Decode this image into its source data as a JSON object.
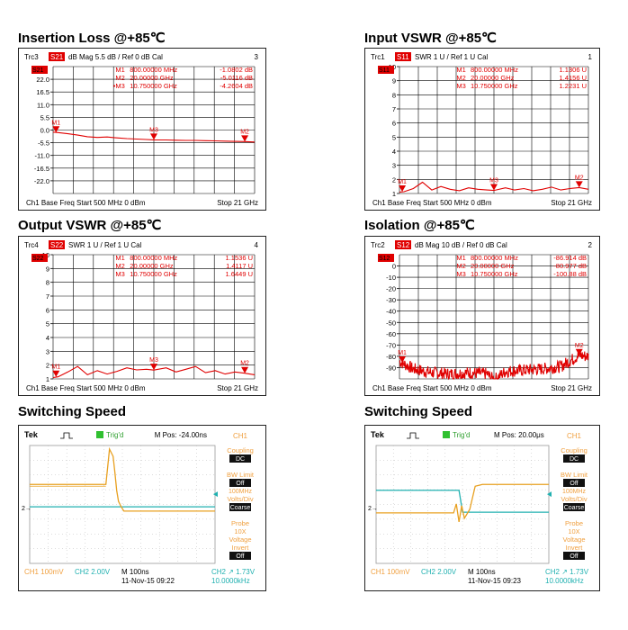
{
  "colors": {
    "trace": "#e00000",
    "grid": "#000000",
    "ch1": "#e8a020",
    "ch2": "#20b0b0",
    "scope_bg": "#ffffff",
    "orange_text": "#f0a040"
  },
  "chart_data": [
    {
      "id": "insertion",
      "type": "line",
      "title": "Insertion Loss @+85℃",
      "header": {
        "trc": "Trc3",
        "param": "S21",
        "rest": "dB Mag   5.5 dB /  Ref 0 dB     Cal",
        "num": "3"
      },
      "param_badge": "S21",
      "yticks": [
        "22.0",
        "16.5",
        "11.0",
        "5.5",
        "0.0",
        "-5.5",
        "-11.0",
        "-16.5",
        "-22.0"
      ],
      "top_label": "22.0",
      "ylim": [
        -27.5,
        27.5
      ],
      "markers_text": [
        {
          "name": "M1",
          "freq": "800.00000  MHz",
          "val": "-1.0802  dB"
        },
        {
          "name": "M2",
          "freq": "20.00000  GHz",
          "val": "-5.0116  dB"
        },
        {
          "name": "•M3",
          "freq": "10.750000  GHz",
          "val": "-4.2604  dB"
        }
      ],
      "x_ghz": [
        0.5,
        1,
        2,
        3,
        4,
        5,
        6,
        7,
        8,
        9,
        10,
        10.75,
        12,
        13,
        14,
        15,
        16,
        17,
        18,
        19,
        20,
        21
      ],
      "y": [
        -0.9,
        -1.1,
        -1.6,
        -2.2,
        -2.9,
        -3.2,
        -3.0,
        -3.4,
        -3.7,
        -3.9,
        -4.1,
        -4.26,
        -4.3,
        -4.4,
        -4.5,
        -4.5,
        -4.6,
        -4.7,
        -4.8,
        -4.9,
        -5.01,
        -5.2
      ],
      "marker_pts": [
        {
          "label": "M1",
          "x": 0.8,
          "y": -1.08
        },
        {
          "label": "M3",
          "x": 10.75,
          "y": -4.26
        },
        {
          "label": "M2",
          "x": 20,
          "y": -5.01
        }
      ],
      "footer": {
        "ch": "Ch1  Base Freq  Start  500 MHz  0 dBm",
        "stop": "Stop  21 GHz"
      }
    },
    {
      "id": "input_vswr",
      "type": "line",
      "title": "Input VSWR @+85℃",
      "header": {
        "trc": "Trc1",
        "param": "S11",
        "rest": "SWR   1 U /  Ref 1 U     Cal",
        "num": "1"
      },
      "param_badge": "S11",
      "yticks": [
        "10",
        "9",
        "8",
        "7",
        "6",
        "5",
        "4",
        "3",
        "2",
        "1"
      ],
      "top_label": "10",
      "ylim": [
        1,
        10
      ],
      "markers_text": [
        {
          "name": "M1",
          "freq": "800.00000  MHz",
          "val": "1.1306  U"
        },
        {
          "name": "M2",
          "freq": "20.00000  GHz",
          "val": "1.4156  U"
        },
        {
          "name": "M3",
          "freq": "10.750000  GHz",
          "val": "1.2231  U"
        }
      ],
      "x_ghz": [
        0.5,
        1,
        2,
        3,
        4,
        5,
        6,
        7,
        8,
        9,
        10,
        10.75,
        12,
        13,
        14,
        15,
        16,
        17,
        18,
        19,
        20,
        21
      ],
      "y": [
        1.1,
        1.13,
        1.35,
        1.8,
        1.25,
        1.5,
        1.3,
        1.2,
        1.4,
        1.3,
        1.25,
        1.22,
        1.4,
        1.25,
        1.35,
        1.2,
        1.3,
        1.45,
        1.25,
        1.35,
        1.42,
        1.3
      ],
      "marker_pts": [
        {
          "label": "M1",
          "x": 0.8,
          "y": 1.13
        },
        {
          "label": "M3",
          "x": 10.75,
          "y": 1.22
        },
        {
          "label": "M2",
          "x": 20,
          "y": 1.42
        }
      ],
      "footer": {
        "ch": "Ch1  Base Freq  Start  500 MHz  0 dBm",
        "stop": "Stop  21 GHz"
      }
    },
    {
      "id": "output_vswr",
      "type": "line",
      "title": "Output VSWR @+85℃",
      "header": {
        "trc": "Trc4",
        "param": "S22",
        "rest": "SWR   1 U /  Ref 1 U     Cal",
        "num": "4"
      },
      "param_badge": "S22",
      "yticks": [
        "10",
        "9",
        "8",
        "7",
        "6",
        "5",
        "4",
        "3",
        "2",
        "1"
      ],
      "top_label": "10",
      "ylim": [
        1,
        10
      ],
      "markers_text": [
        {
          "name": "M1",
          "freq": "800.00000  MHz",
          "val": "1.1536  U"
        },
        {
          "name": "M2",
          "freq": "20.00000  GHz",
          "val": "1.4117  U"
        },
        {
          "name": "M3",
          "freq": "10.750000  GHz",
          "val": "1.6449  U"
        }
      ],
      "x_ghz": [
        0.5,
        1,
        2,
        3,
        4,
        5,
        6,
        7,
        8,
        9,
        10,
        10.75,
        12,
        13,
        14,
        15,
        16,
        17,
        18,
        19,
        20,
        21
      ],
      "y": [
        1.1,
        1.15,
        1.5,
        1.9,
        1.3,
        1.6,
        1.35,
        1.55,
        1.8,
        1.65,
        1.7,
        1.64,
        1.8,
        1.5,
        1.7,
        1.9,
        1.45,
        1.6,
        1.35,
        1.5,
        1.41,
        1.3
      ],
      "marker_pts": [
        {
          "label": "M1",
          "x": 0.8,
          "y": 1.15
        },
        {
          "label": "M3",
          "x": 10.75,
          "y": 1.64
        },
        {
          "label": "M2",
          "x": 20,
          "y": 1.41
        }
      ],
      "footer": {
        "ch": "Ch1  Base Freq  Start  500 MHz  0 dBm",
        "stop": "Stop  21 GHz"
      }
    },
    {
      "id": "isolation",
      "type": "line",
      "title": "Isolation @+85℃",
      "header": {
        "trc": "Trc2",
        "param": "S12",
        "rest": "dB Mag   10 dB /  Ref 0 dB     Cal",
        "num": "2"
      },
      "param_badge": "S12",
      "yticks": [
        "0",
        "-10",
        "-20",
        "-30",
        "-40",
        "-50",
        "-60",
        "-70",
        "-80",
        "-90"
      ],
      "top_label": "0",
      "ylim": [
        -100,
        0
      ],
      "markers_text": [
        {
          "name": "M1",
          "freq": "800.00000  MHz",
          "val": "-86.914  dB"
        },
        {
          "name": "M2",
          "freq": "20.00000  GHz",
          "val": "-80.977  dB"
        },
        {
          "name": "M3",
          "freq": "10.750000  GHz",
          "val": "-100.88  dB"
        }
      ],
      "x_ghz": [
        0.5,
        2,
        4,
        6,
        8,
        10,
        10.75,
        12,
        14,
        16,
        18,
        20,
        21
      ],
      "y": [
        -86,
        -92,
        -95,
        -96,
        -95,
        -96,
        -100.9,
        -94,
        -93,
        -92,
        -90,
        -81,
        -82
      ],
      "noisy": true,
      "marker_pts": [
        {
          "label": "M1",
          "x": 0.8,
          "y": -86.9
        },
        {
          "label": "M2",
          "x": 20,
          "y": -81
        }
      ],
      "footer": {
        "ch": "Ch1  Base Freq  Start  500 MHz  0 dBm",
        "stop": "Stop  21 GHz"
      }
    },
    {
      "id": "switch1",
      "type": "line",
      "title": "Switching Speed",
      "brand": "Tek",
      "trig": "Trig'd",
      "mpos": "M Pos: -24.00ns",
      "side": {
        "ch": "CH1",
        "coupling": "Coupling",
        "coupling_v": "DC",
        "bw": "BW Limit",
        "bw_v": "Off",
        "bw_sub": "100MHz",
        "vd": "Volts/Div",
        "vd_v": "Coarse",
        "probe": "Probe",
        "probe_v": "10X",
        "probe_sub": "Voltage",
        "invert": "Invert",
        "invert_v": "Off"
      },
      "bottom": {
        "ch1": "CH1  100mV",
        "ch2": "CH2  2.00V",
        "m": "M 100ns",
        "date": "11-Nov-15 09:22",
        "trig": "CH2 ↗ 1.73V",
        "freq": "10.0000kHz"
      },
      "ch2_level": "low_after",
      "edge_frac": 0.45
    },
    {
      "id": "switch2",
      "type": "line",
      "title": "Switching Speed",
      "brand": "Tek",
      "trig": "Trig'd",
      "mpos": "M Pos: 20.00μs",
      "side": {
        "ch": "CH1",
        "coupling": "Coupling",
        "coupling_v": "DC",
        "bw": "BW Limit",
        "bw_v": "Off",
        "bw_sub": "100MHz",
        "vd": "Volts/Div",
        "vd_v": "Coarse",
        "probe": "Probe",
        "probe_v": "10X",
        "probe_sub": "Voltage",
        "invert": "Invert",
        "invert_v": "Off"
      },
      "bottom": {
        "ch1": "CH1  100mV",
        "ch2": "CH2  2.00V",
        "m": "M 100ns",
        "date": "11-Nov-15 09:23",
        "trig": "CH2 ↗ 1.73V",
        "freq": "10.0000kHz"
      },
      "ch2_level": "high_after",
      "edge_frac": 0.48
    }
  ]
}
